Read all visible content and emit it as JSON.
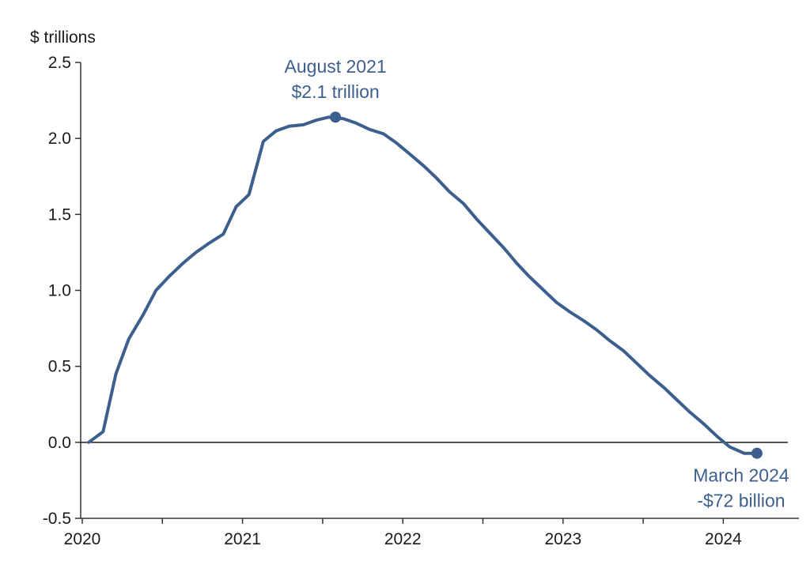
{
  "chart_data": {
    "type": "line",
    "ylabel": "$ trillions",
    "ylim": [
      -0.5,
      2.5
    ],
    "xlim": [
      2020.0,
      2024.42
    ],
    "y_ticks": [
      "2.5",
      "2.0",
      "1.5",
      "1.0",
      "0.5",
      "0.0",
      "-0.5"
    ],
    "x_ticks": [
      "2020",
      "2021",
      "2022",
      "2023",
      "2024"
    ],
    "grid": false,
    "zero_line": true,
    "colors": {
      "line": "#3d5f8e",
      "annotation": "#3d5f8e",
      "axis": "#333333"
    },
    "series": [
      {
        "x": [
          2020.04,
          2020.13,
          2020.21,
          2020.29,
          2020.38,
          2020.46,
          2020.54,
          2020.63,
          2020.71,
          2020.79,
          2020.88,
          2020.96,
          2021.04,
          2021.13,
          2021.21,
          2021.29,
          2021.38,
          2021.46,
          2021.54,
          2021.63,
          2021.71,
          2021.79,
          2021.88,
          2021.96,
          2022.04,
          2022.13,
          2022.21,
          2022.29,
          2022.38,
          2022.46,
          2022.54,
          2022.63,
          2022.71,
          2022.79,
          2022.88,
          2022.96,
          2023.04,
          2023.13,
          2023.21,
          2023.29,
          2023.38,
          2023.46,
          2023.54,
          2023.63,
          2023.71,
          2023.79,
          2023.88,
          2023.96,
          2024.04,
          2024.13,
          2024.21
        ],
        "y": [
          0.0,
          0.07,
          0.45,
          0.68,
          0.84,
          1.0,
          1.09,
          1.18,
          1.25,
          1.31,
          1.37,
          1.55,
          1.63,
          1.98,
          2.05,
          2.08,
          2.09,
          2.12,
          2.14,
          2.13,
          2.1,
          2.06,
          2.03,
          1.97,
          1.9,
          1.82,
          1.74,
          1.65,
          1.57,
          1.47,
          1.38,
          1.28,
          1.18,
          1.09,
          1.0,
          0.92,
          0.86,
          0.8,
          0.74,
          0.67,
          0.6,
          0.52,
          0.44,
          0.36,
          0.28,
          0.2,
          0.12,
          0.04,
          -0.03,
          -0.072,
          -0.072
        ]
      }
    ],
    "annotations": [
      {
        "x": 2021.58,
        "y": 2.14,
        "line1": "August 2021",
        "line2": "$2.1 trillion"
      },
      {
        "x": 2024.21,
        "y": -0.072,
        "line1": "March 2024",
        "line2": "-$72 billion"
      }
    ]
  }
}
